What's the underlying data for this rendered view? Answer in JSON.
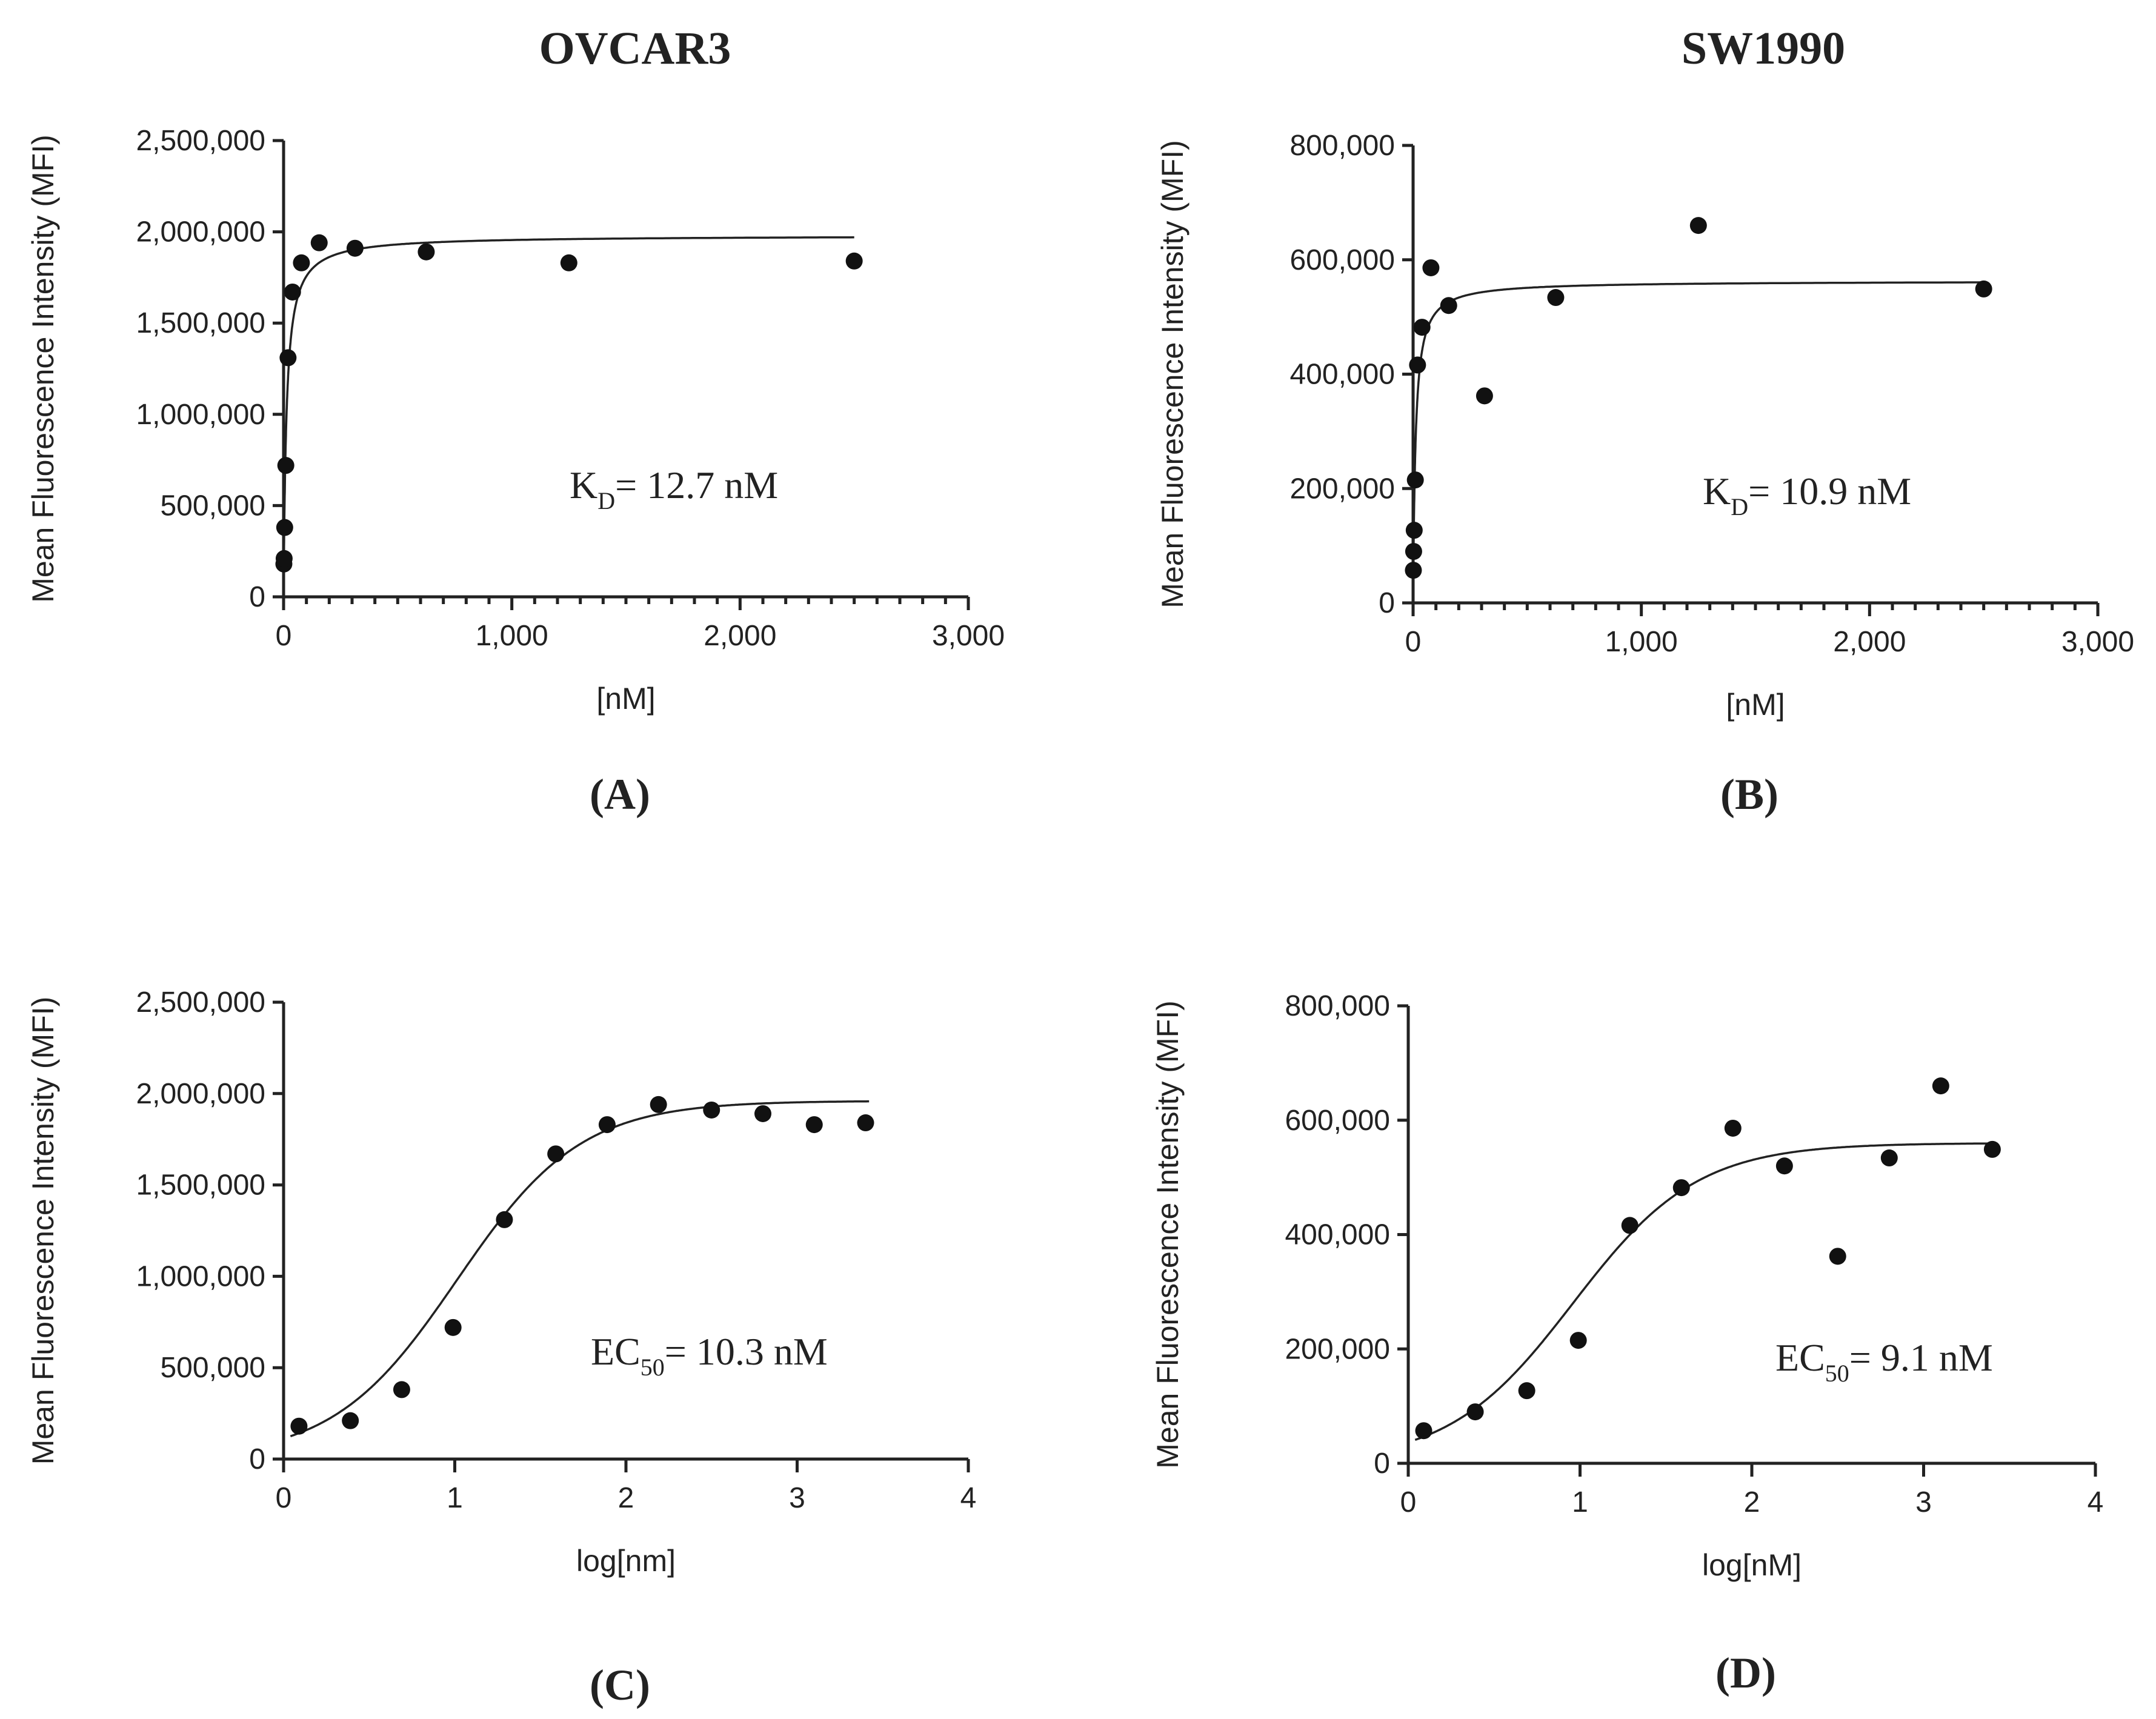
{
  "figure": {
    "column_titles": [
      "OVCAR3",
      "SW1990"
    ]
  },
  "chart_data": [
    {
      "panel": "(A)",
      "type": "scatter",
      "title": "OVCAR3",
      "xlabel": "[nM]",
      "ylabel": "Mean Fluorescence Intensity (MFI)",
      "xlim": [
        0,
        3000
      ],
      "ylim": [
        0,
        2500000
      ],
      "xticks": [
        0,
        1000,
        2000,
        3000
      ],
      "xtick_labels": [
        "0",
        "1,000",
        "2,000",
        "3,000"
      ],
      "yticks": [
        0,
        500000,
        1000000,
        1500000,
        2000000,
        2500000
      ],
      "ytick_labels": [
        "0",
        "500,000",
        "1,000,000",
        "1,500,000",
        "2,000,000",
        "2,500,000"
      ],
      "minor_x": 10,
      "x": [
        1.22,
        2.44,
        4.88,
        9.77,
        19.5,
        39.1,
        78.1,
        156,
        313,
        625,
        1250,
        2500
      ],
      "y": [
        180000,
        210000,
        380000,
        720000,
        1310000,
        1670000,
        1830000,
        1940000,
        1910000,
        1890000,
        1830000,
        1840000
      ],
      "fit": {
        "model": "one-site binding",
        "bmax": 1980000,
        "kd": 12.7,
        "x_range": [
          0,
          2500
        ]
      },
      "annotation": {
        "main": "K",
        "sub": "D",
        "tail": "= 12.7 nM"
      }
    },
    {
      "panel": "(B)",
      "type": "scatter",
      "title": "SW1990",
      "xlabel": "[nM]",
      "ylabel": "Mean Fluorescence Intensity (MFI)",
      "xlim": [
        0,
        3000
      ],
      "ylim": [
        0,
        800000
      ],
      "xticks": [
        0,
        1000,
        2000,
        3000
      ],
      "xtick_labels": [
        "0",
        "1,000",
        "2,000",
        "3,000"
      ],
      "yticks": [
        0,
        200000,
        400000,
        600000,
        800000
      ],
      "ytick_labels": [
        "0",
        "200,000",
        "400,000",
        "600,000",
        "800,000"
      ],
      "minor_x": 10,
      "x": [
        1.22,
        2.44,
        4.88,
        9.77,
        19.5,
        39.1,
        78.1,
        156,
        313,
        625,
        1250,
        2500
      ],
      "y": [
        57000,
        90000,
        127000,
        215000,
        416000,
        482000,
        586000,
        520000,
        362000,
        534000,
        660000,
        549000
      ],
      "fit": {
        "model": "one-site binding",
        "bmax": 563000,
        "kd": 10.9,
        "x_range": [
          0,
          2500
        ]
      },
      "annotation": {
        "main": "K",
        "sub": "D",
        "tail": "= 10.9 nM"
      }
    },
    {
      "panel": "(C)",
      "type": "scatter",
      "title": "",
      "xlabel": "log[nm]",
      "ylabel": "Mean Fluorescence Intensity (MFI)",
      "xlim": [
        0,
        4
      ],
      "ylim": [
        0,
        2500000
      ],
      "xticks": [
        0,
        1,
        2,
        3,
        4
      ],
      "xtick_labels": [
        "0",
        "1",
        "2",
        "3",
        "4"
      ],
      "yticks": [
        0,
        500000,
        1000000,
        1500000,
        2000000,
        2500000
      ],
      "ytick_labels": [
        "0",
        "500,000",
        "1,000,000",
        "1,500,000",
        "2,000,000",
        "2,500,000"
      ],
      "minor_x": 0,
      "x": [
        0.09,
        0.39,
        0.69,
        0.99,
        1.29,
        1.59,
        1.89,
        2.19,
        2.5,
        2.8,
        3.1,
        3.4
      ],
      "y": [
        180000,
        210000,
        380000,
        720000,
        1310000,
        1670000,
        1830000,
        1940000,
        1910000,
        1890000,
        1830000,
        1840000
      ],
      "fit": {
        "model": "sigmoid",
        "top": 1960000,
        "bottom": 0,
        "logec50": 1.013,
        "hill": 1.2,
        "x_range": [
          0.04,
          3.42
        ]
      },
      "annotation": {
        "main": "EC",
        "sub": "50",
        "tail": "= 10.3 nM"
      }
    },
    {
      "panel": "(D)",
      "type": "scatter",
      "title": "",
      "xlabel": "log[nM]",
      "ylabel": "Mean Fluorescence Intensity (MFI)",
      "xlim": [
        0,
        4
      ],
      "ylim": [
        0,
        800000
      ],
      "xticks": [
        0,
        1,
        2,
        3,
        4
      ],
      "xtick_labels": [
        "0",
        "1",
        "2",
        "3",
        "4"
      ],
      "yticks": [
        0,
        200000,
        400000,
        600000,
        800000
      ],
      "ytick_labels": [
        "0",
        "200,000",
        "400,000",
        "600,000",
        "800,000"
      ],
      "minor_x": 0,
      "x": [
        0.09,
        0.39,
        0.69,
        0.99,
        1.29,
        1.59,
        1.89,
        2.19,
        2.5,
        2.8,
        3.1,
        3.4
      ],
      "y": [
        57000,
        90000,
        127000,
        215000,
        416000,
        482000,
        586000,
        520000,
        362000,
        534000,
        660000,
        549000
      ],
      "fit": {
        "model": "sigmoid",
        "top": 560000,
        "bottom": 0,
        "logec50": 0.959,
        "hill": 1.2,
        "x_range": [
          0.04,
          3.42
        ]
      },
      "annotation": {
        "main": "EC",
        "sub": "50",
        "tail": "= 9.1 nM"
      }
    }
  ]
}
